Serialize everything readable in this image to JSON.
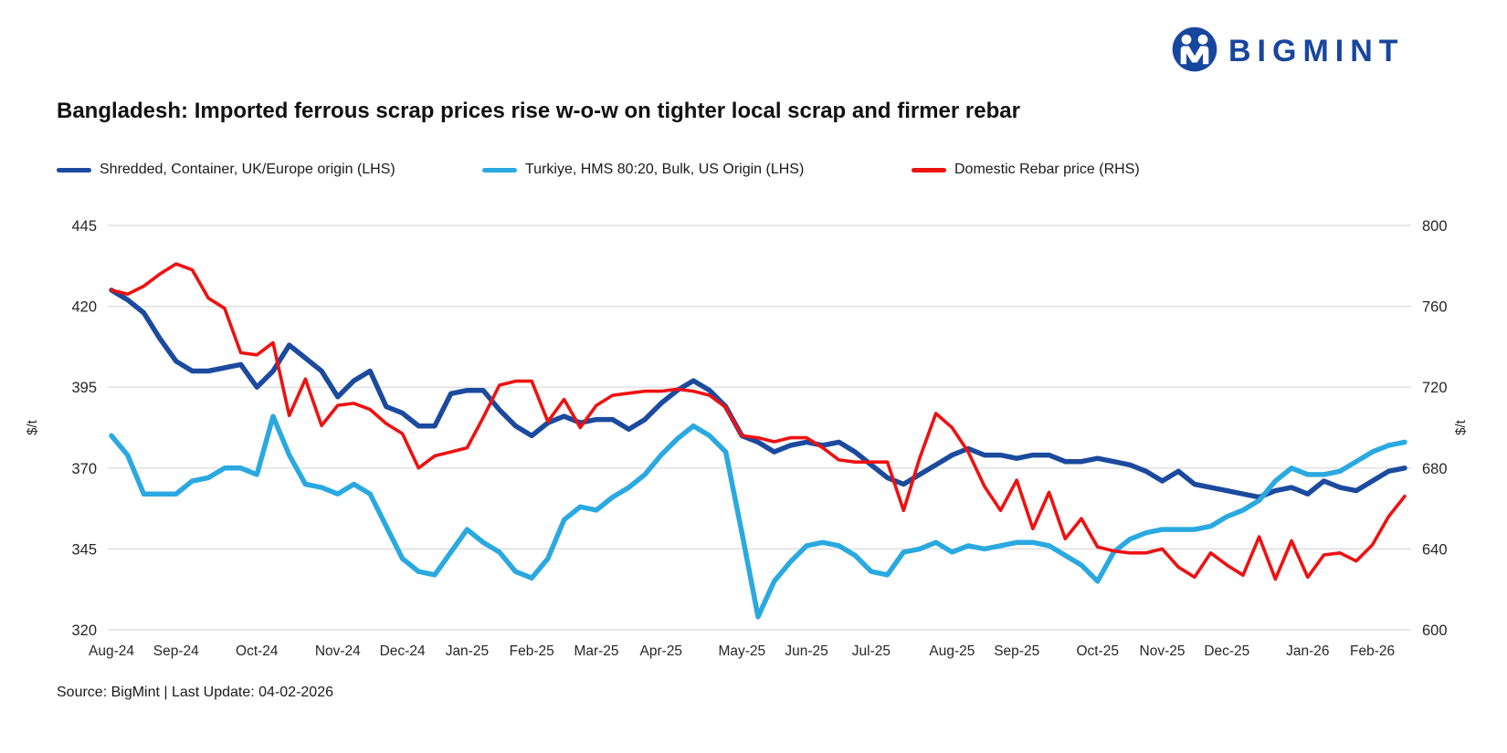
{
  "logo": {
    "text": "BIGMINT"
  },
  "title": "Bangladesh: Imported ferrous scrap prices rise w-o-w on tighter local scrap and firmer rebar",
  "source": "Source: BigMint | Last Update: 04-02-2026",
  "colors": {
    "brand_navy": "#17469e",
    "gridline": "#d9d9d9",
    "axis_text": "#262626"
  },
  "chart_data": {
    "type": "line",
    "title": "Bangladesh: Imported ferrous scrap prices rise w-o-w on tighter local scrap and firmer rebar",
    "grid": "horizontal-only",
    "legend_position": "top",
    "x_labels": [
      "Aug-24",
      "Sep-24",
      "Oct-24",
      "Nov-24",
      "Dec-24",
      "Jan-25",
      "Feb-25",
      "Mar-25",
      "Apr-25",
      "May-25",
      "Jun-25",
      "Jul-25",
      "Aug-25",
      "Sep-25",
      "Oct-25",
      "Nov-25",
      "Dec-25",
      "Jan-26",
      "Feb-26"
    ],
    "tick_indices": [
      0,
      4,
      9,
      14,
      18,
      22,
      26,
      30,
      34,
      39,
      43,
      47,
      52,
      56,
      61,
      65,
      69,
      74,
      78
    ],
    "axis_left": {
      "label": "$/t",
      "min": 320,
      "max": 445,
      "ticks": [
        445,
        420,
        395,
        370,
        345,
        320
      ]
    },
    "axis_right": {
      "label": "$/t",
      "min": 600,
      "max": 800,
      "ticks": [
        800,
        760,
        720,
        680,
        640,
        600
      ]
    },
    "series": [
      {
        "name": "Shredded, Container, UK/Europe origin (LHS)",
        "axis": "left",
        "color": "#1b4a9e",
        "values": [
          425,
          422,
          418,
          410,
          403,
          400,
          400,
          401,
          402,
          395,
          400,
          408,
          404,
          400,
          392,
          397,
          400,
          389,
          387,
          383,
          383,
          393,
          394,
          394,
          388,
          383,
          380,
          384,
          386,
          384,
          385,
          385,
          382,
          385,
          390,
          394,
          397,
          394,
          389,
          380,
          378,
          375,
          377,
          378,
          377,
          378,
          375,
          371,
          367,
          365,
          368,
          371,
          374,
          376,
          374,
          374,
          373,
          374,
          374,
          372,
          372,
          373,
          372,
          371,
          369,
          366,
          369,
          365,
          364,
          363,
          362,
          361,
          363,
          364,
          362,
          366,
          364,
          363,
          366,
          369,
          370
        ]
      },
      {
        "name": "Turkiye, HMS 80:20, Bulk, US Origin (LHS)",
        "axis": "left",
        "color": "#2aa9e0",
        "values": [
          380,
          374,
          362,
          362,
          362,
          366,
          367,
          370,
          370,
          368,
          386,
          374,
          365,
          364,
          362,
          365,
          362,
          352,
          342,
          338,
          337,
          344,
          351,
          347,
          344,
          338,
          336,
          342,
          354,
          358,
          357,
          361,
          364,
          368,
          374,
          379,
          383,
          380,
          375,
          350,
          324,
          335,
          341,
          346,
          347,
          346,
          343,
          338,
          337,
          344,
          345,
          347,
          344,
          346,
          345,
          346,
          347,
          347,
          346,
          343,
          340,
          335,
          344,
          348,
          350,
          351,
          351,
          351,
          352,
          355,
          357,
          360,
          366,
          370,
          368,
          368,
          369,
          372,
          375,
          377,
          378
        ]
      },
      {
        "name": "Domestic Rebar price (RHS)",
        "axis": "right",
        "color": "#ee1111",
        "values": [
          768,
          766,
          770,
          776,
          781,
          778,
          764,
          759,
          737,
          736,
          742,
          706,
          724,
          701,
          711,
          712,
          709,
          702,
          697,
          680,
          686,
          688,
          690,
          705,
          721,
          723,
          723,
          703,
          714,
          700,
          711,
          716,
          717,
          718,
          718,
          719,
          718,
          716,
          710,
          696,
          695,
          693,
          695,
          695,
          690,
          684,
          683,
          683,
          683,
          659,
          685,
          707,
          700,
          688,
          671,
          659,
          674,
          650,
          668,
          645,
          655,
          641,
          639,
          638,
          638,
          640,
          631,
          626,
          638,
          632,
          627,
          646,
          625,
          644,
          626,
          637,
          638,
          634,
          642,
          656,
          666
        ]
      }
    ]
  }
}
